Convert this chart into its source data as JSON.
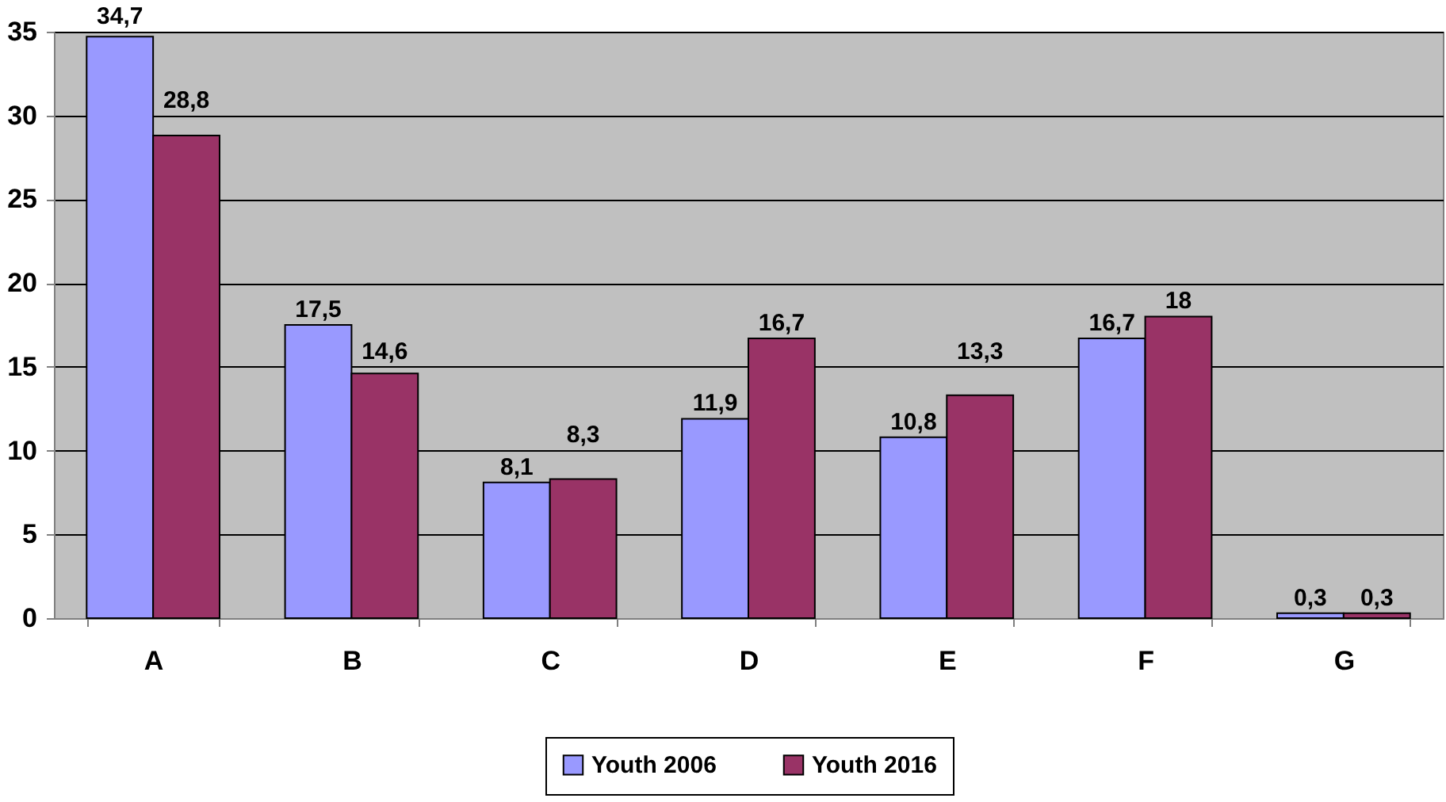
{
  "chart_data": {
    "type": "bar",
    "categories": [
      "A",
      "B",
      "C",
      "D",
      "E",
      "F",
      "G"
    ],
    "series": [
      {
        "name": "Youth 2006",
        "color": "#9999ff",
        "values": [
          34.7,
          17.5,
          8.1,
          11.9,
          10.8,
          16.7,
          0.3
        ],
        "value_labels": [
          "34,7",
          "17,5",
          "8,1",
          "11,9",
          "10,8",
          "16,7",
          "0,3"
        ]
      },
      {
        "name": "Youth 2016",
        "color": "#993366",
        "values": [
          28.8,
          14.6,
          8.3,
          16.7,
          13.3,
          18,
          0.3
        ],
        "value_labels": [
          "28,8",
          "14,6",
          "8,3",
          "16,7",
          "13,3",
          "18",
          "0,3"
        ]
      }
    ],
    "ylim": [
      0,
      35
    ],
    "yticks": [
      0,
      5,
      10,
      15,
      20,
      25,
      30,
      35
    ],
    "grid": "y",
    "legend": "bottom"
  }
}
